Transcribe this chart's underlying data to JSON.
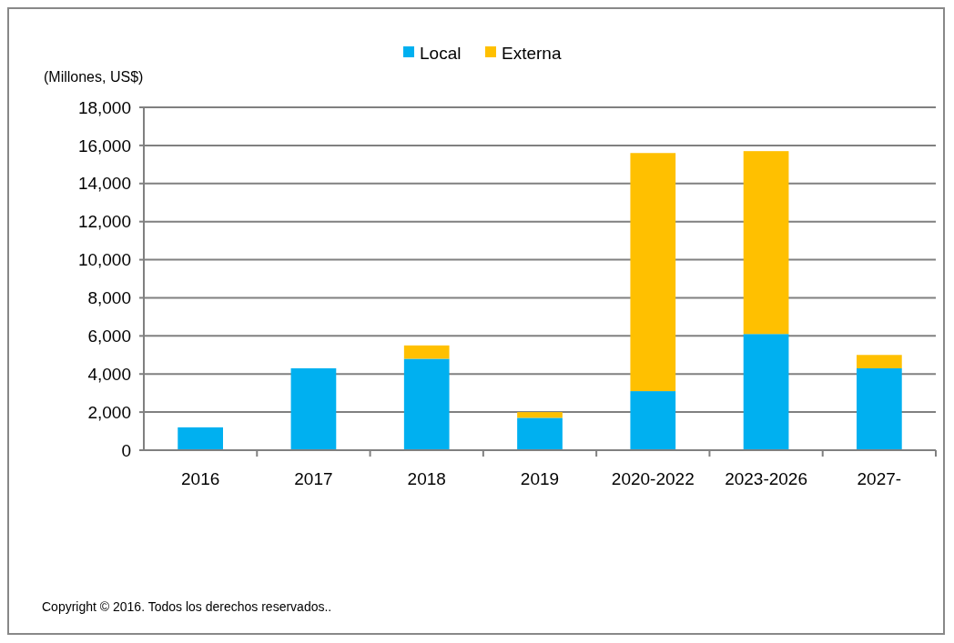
{
  "chart_data": {
    "type": "bar",
    "stacked": true,
    "ylabel": "(Millones, US$)",
    "categories": [
      "2016",
      "2017",
      "2018",
      "2019",
      "2020-2022",
      "2023-2026",
      "2027-"
    ],
    "series": [
      {
        "name": "Local",
        "color": "#00b0f0",
        "values": [
          1200,
          4300,
          4800,
          1700,
          3100,
          6100,
          4300
        ]
      },
      {
        "name": "Externa",
        "color": "#ffc000",
        "values": [
          0,
          0,
          700,
          300,
          12500,
          9600,
          700
        ]
      }
    ],
    "ylim": [
      0,
      18000
    ],
    "yticks": [
      {
        "value": 0,
        "label": "0"
      },
      {
        "value": 2000,
        "label": "2,000"
      },
      {
        "value": 4000,
        "label": "4,000"
      },
      {
        "value": 6000,
        "label": "6,000"
      },
      {
        "value": 8000,
        "label": "8,000"
      },
      {
        "value": 10000,
        "label": "10,000"
      },
      {
        "value": 12000,
        "label": "12,000"
      },
      {
        "value": 14000,
        "label": "14,000"
      },
      {
        "value": 16000,
        "label": "16,000"
      },
      {
        "value": 18000,
        "label": "18,000"
      }
    ],
    "grid": "y",
    "legend": "top",
    "annotations": [
      "Copyright © 2016. Todos los derechos reservados.."
    ]
  }
}
